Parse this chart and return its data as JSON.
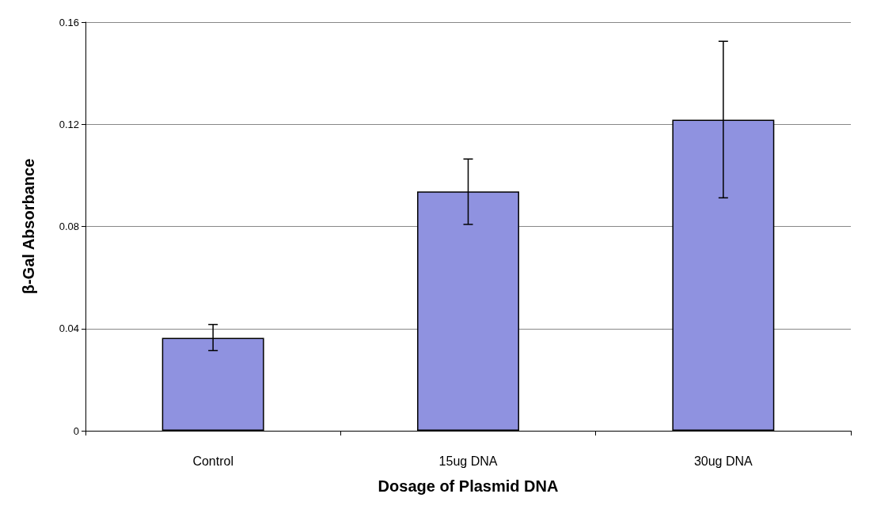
{
  "chart_data": {
    "type": "bar",
    "xlabel": "Dosage of Plasmid DNA",
    "ylabel": "β-Gal Absorbance",
    "categories": [
      "Control",
      "15ug DNA",
      "30ug DNA"
    ],
    "values": [
      0.0364,
      0.0937,
      0.1218
    ],
    "errors": [
      [
        0.0314,
        0.0416
      ],
      [
        0.0808,
        0.1064
      ],
      [
        0.0912,
        0.1525
      ]
    ],
    "color": "#8f92e0",
    "ylim": [
      0,
      0.16
    ],
    "yticks": [
      0,
      0.04,
      0.08,
      0.12,
      0.16
    ],
    "grid": "y"
  }
}
